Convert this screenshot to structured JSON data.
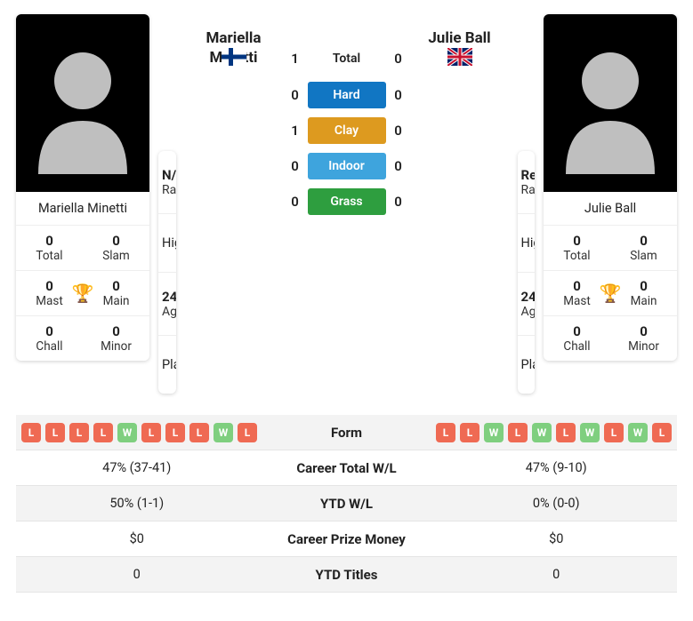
{
  "player1": {
    "name": "Mariella Minetti",
    "name_short": "Mariella\nMinetti",
    "country": "finland",
    "rank_val": "N/A",
    "high": "High",
    "age": "24",
    "plays": "Plays",
    "titles": {
      "total": "0",
      "slam": "0",
      "mast": "0",
      "main": "0",
      "chall": "0",
      "minor": "0"
    },
    "form": [
      "L",
      "L",
      "L",
      "L",
      "W",
      "L",
      "L",
      "L",
      "W",
      "L"
    ],
    "career_wl": "47% (37-41)",
    "ytd_wl": "50% (1-1)",
    "prize": "$0",
    "ytd_titles": "0"
  },
  "player2": {
    "name": "Julie Ball",
    "country": "uk",
    "rank_val": "Ret.",
    "high": "High",
    "age": "24",
    "plays": "Plays",
    "titles": {
      "total": "0",
      "slam": "0",
      "mast": "0",
      "main": "0",
      "chall": "0",
      "minor": "0"
    },
    "form": [
      "L",
      "L",
      "W",
      "L",
      "W",
      "L",
      "W",
      "L",
      "W",
      "L"
    ],
    "career_wl": "47% (9-10)",
    "ytd_wl": "0% (0-0)",
    "prize": "$0",
    "ytd_titles": "0"
  },
  "h2h": {
    "total": {
      "p1": "1",
      "p2": "0"
    },
    "hard": {
      "p1": "0",
      "p2": "0"
    },
    "clay": {
      "p1": "1",
      "p2": "0"
    },
    "indoor": {
      "p1": "0",
      "p2": "0"
    },
    "grass": {
      "p1": "0",
      "p2": "0"
    }
  },
  "labels": {
    "total_lbl": "Total",
    "slam_lbl": "Slam",
    "mast_lbl": "Mast",
    "main_lbl": "Main",
    "chall_lbl": "Chall",
    "minor_lbl": "Minor",
    "rank_lbl": "Rank",
    "high_lbl": "High",
    "age_lbl": "Age",
    "plays_lbl": "Plays",
    "surf_total": "Total",
    "surf_hard": "Hard",
    "surf_clay": "Clay",
    "surf_indoor": "Indoor",
    "surf_grass": "Grass",
    "form": "Form",
    "career_wl": "Career Total W/L",
    "ytd_wl": "YTD W/L",
    "prize": "Career Prize Money",
    "ytd_titles": "YTD Titles"
  },
  "colors": {
    "hard": "#1176c3",
    "clay": "#dd9a1f",
    "indoor": "#3ea4dd",
    "grass": "#2e9e3f"
  }
}
